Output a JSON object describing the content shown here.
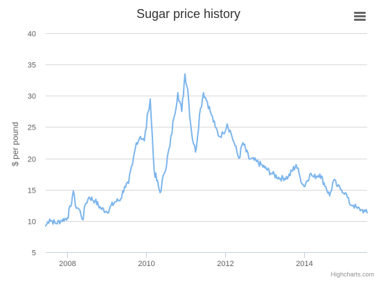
{
  "chart_data": {
    "type": "line",
    "title": "Sugar price history",
    "ylabel": "$ per pound",
    "xlabel": "",
    "ylim": [
      5,
      40
    ],
    "yticks": [
      5,
      10,
      15,
      20,
      25,
      30,
      35,
      40
    ],
    "xlim": [
      2007.45,
      2015.6
    ],
    "xticks": [
      2008,
      2010,
      2012,
      2014
    ],
    "grid": true,
    "legend": "none",
    "series": [
      {
        "color": "#7cb5ec",
        "x": [
          2007.45,
          2007.55,
          2007.7,
          2007.85,
          2008.0,
          2008.08,
          2008.15,
          2008.2,
          2008.3,
          2008.4,
          2008.45,
          2008.55,
          2008.7,
          2008.85,
          2009.0,
          2009.2,
          2009.35,
          2009.45,
          2009.55,
          2009.65,
          2009.75,
          2009.85,
          2009.95,
          2010.05,
          2010.1,
          2010.2,
          2010.35,
          2010.45,
          2010.6,
          2010.7,
          2010.8,
          2010.9,
          2010.98,
          2011.05,
          2011.15,
          2011.25,
          2011.35,
          2011.45,
          2011.55,
          2011.65,
          2011.75,
          2011.85,
          2011.95,
          2012.05,
          2012.15,
          2012.25,
          2012.35,
          2012.45,
          2012.6,
          2012.8,
          2013.0,
          2013.2,
          2013.4,
          2013.6,
          2013.8,
          2013.9,
          2014.0,
          2014.15,
          2014.25,
          2014.4,
          2014.55,
          2014.65,
          2014.75,
          2014.85,
          2014.95,
          2015.05,
          2015.15,
          2015.25,
          2015.35,
          2015.45,
          2015.55,
          2015.6
        ],
        "y": [
          9.2,
          10.3,
          9.6,
          10.1,
          10.5,
          12.3,
          14.8,
          12.5,
          11.8,
          10.2,
          12.6,
          13.8,
          13.2,
          12.0,
          11.5,
          13.0,
          13.5,
          15.5,
          16.0,
          19.0,
          22.5,
          23.5,
          22.8,
          27.5,
          29.5,
          18.0,
          14.5,
          17.5,
          22.0,
          26.5,
          30.5,
          27.5,
          33.5,
          31.0,
          24.0,
          21.0,
          27.0,
          30.5,
          29.0,
          27.0,
          25.0,
          23.5,
          24.0,
          25.5,
          24.0,
          22.0,
          20.0,
          22.5,
          20.0,
          19.5,
          18.5,
          17.5,
          16.8,
          17.0,
          19.0,
          17.0,
          15.5,
          17.5,
          17.0,
          17.5,
          15.5,
          14.0,
          16.5,
          15.5,
          15.0,
          14.5,
          12.8,
          12.5,
          12.0,
          11.8,
          11.5,
          11.3
        ]
      }
    ]
  },
  "menu_icon": "hamburger-menu-icon",
  "credits": "Highcharts.com"
}
